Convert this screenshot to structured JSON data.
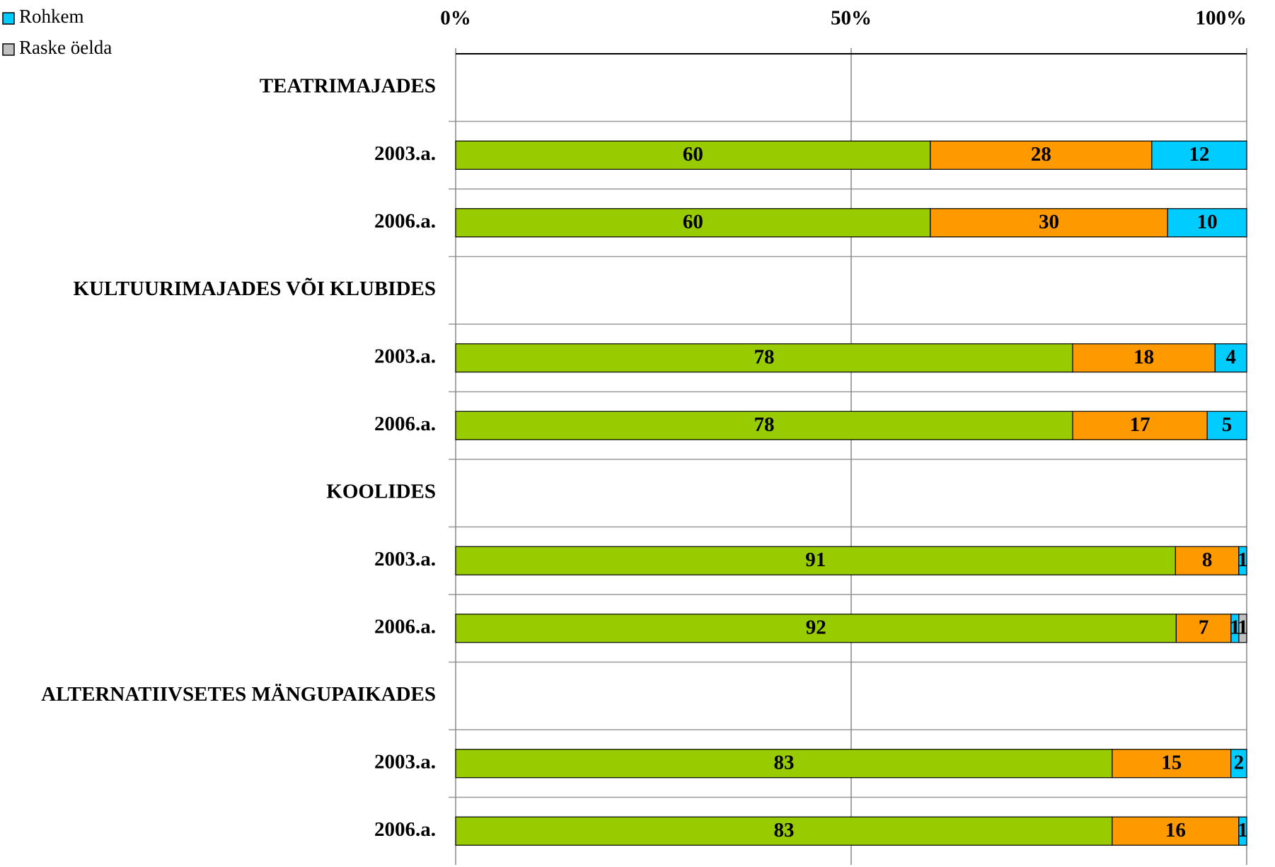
{
  "chart_data": {
    "type": "stacked_bar_100_horizontal",
    "categories": [
      "TEATRIMAJADES",
      "2003.a.",
      "2006.a.",
      "KULTUURIMAJADES VÕI KLUBIDES",
      "2003.a.",
      "2006.a.",
      "KOOLIDES",
      "2003.a.",
      "2006.a.",
      "ALTERNATIIVSETES MÄNGUPAIKADES",
      "2003.a.",
      "2006.a."
    ],
    "series": [
      {
        "color": "#99cc00",
        "values": [
          null,
          60,
          60,
          null,
          78,
          78,
          null,
          91,
          92,
          null,
          83,
          83
        ]
      },
      {
        "color": "#ff9900",
        "values": [
          null,
          28,
          30,
          null,
          18,
          17,
          null,
          8,
          7,
          null,
          15,
          16
        ]
      },
      {
        "name": "Rohkem",
        "color": "#00ccff",
        "values": [
          null,
          12,
          10,
          null,
          4,
          5,
          null,
          1,
          1,
          null,
          2,
          1
        ]
      },
      {
        "name": "Raske öelda",
        "color": "#c0c0c0",
        "values": [
          null,
          null,
          null,
          null,
          null,
          null,
          null,
          null,
          1,
          null,
          null,
          null
        ]
      }
    ],
    "xlim": [
      0,
      100
    ],
    "xticks": [
      {
        "value": 0,
        "label": "0%"
      },
      {
        "value": 50,
        "label": "50%"
      },
      {
        "value": 100,
        "label": "100%"
      }
    ],
    "grid": true,
    "legend": "top-left"
  }
}
